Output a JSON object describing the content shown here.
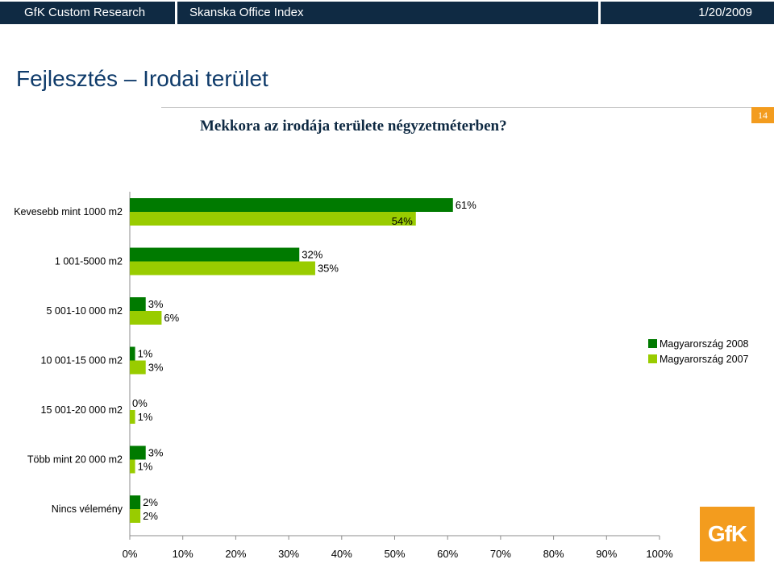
{
  "header": {
    "company": "GfK Custom Research",
    "report": "Skanska Office Index",
    "date": "1/20/2009"
  },
  "page": {
    "title": "Fejlesztés – Irodai terület",
    "question": "Mekkora az irodája területe négyzetméterben?",
    "number": "14"
  },
  "logo": {
    "text": "GfK"
  },
  "colors": {
    "header_bg": "#0f2a43",
    "accent": "#f39c1e",
    "series_2008": "#007a00",
    "series_2007": "#99cc00"
  },
  "chart_data": {
    "type": "bar",
    "orientation": "horizontal",
    "title": "Mekkora az irodája területe négyzetméterben?",
    "categories": [
      "Kevesebb mint 1000 m2",
      "1 001-5000 m2",
      "5 001-10 000 m2",
      "10 001-15 000 m2",
      "15 001-20 000 m2",
      "Több mint 20 000 m2",
      "Nincs vélemény"
    ],
    "series": [
      {
        "name": "Magyarország 2008",
        "values": [
          61,
          32,
          3,
          1,
          0,
          3,
          2
        ],
        "color": "#007a00"
      },
      {
        "name": "Magyarország 2007",
        "values": [
          54,
          35,
          6,
          3,
          1,
          1,
          2
        ],
        "color": "#99cc00"
      }
    ],
    "value_unit": "%",
    "xlim": [
      0,
      100
    ],
    "xticks": [
      0,
      10,
      20,
      30,
      40,
      50,
      60,
      70,
      80,
      90,
      100
    ],
    "legend_position": "right"
  }
}
